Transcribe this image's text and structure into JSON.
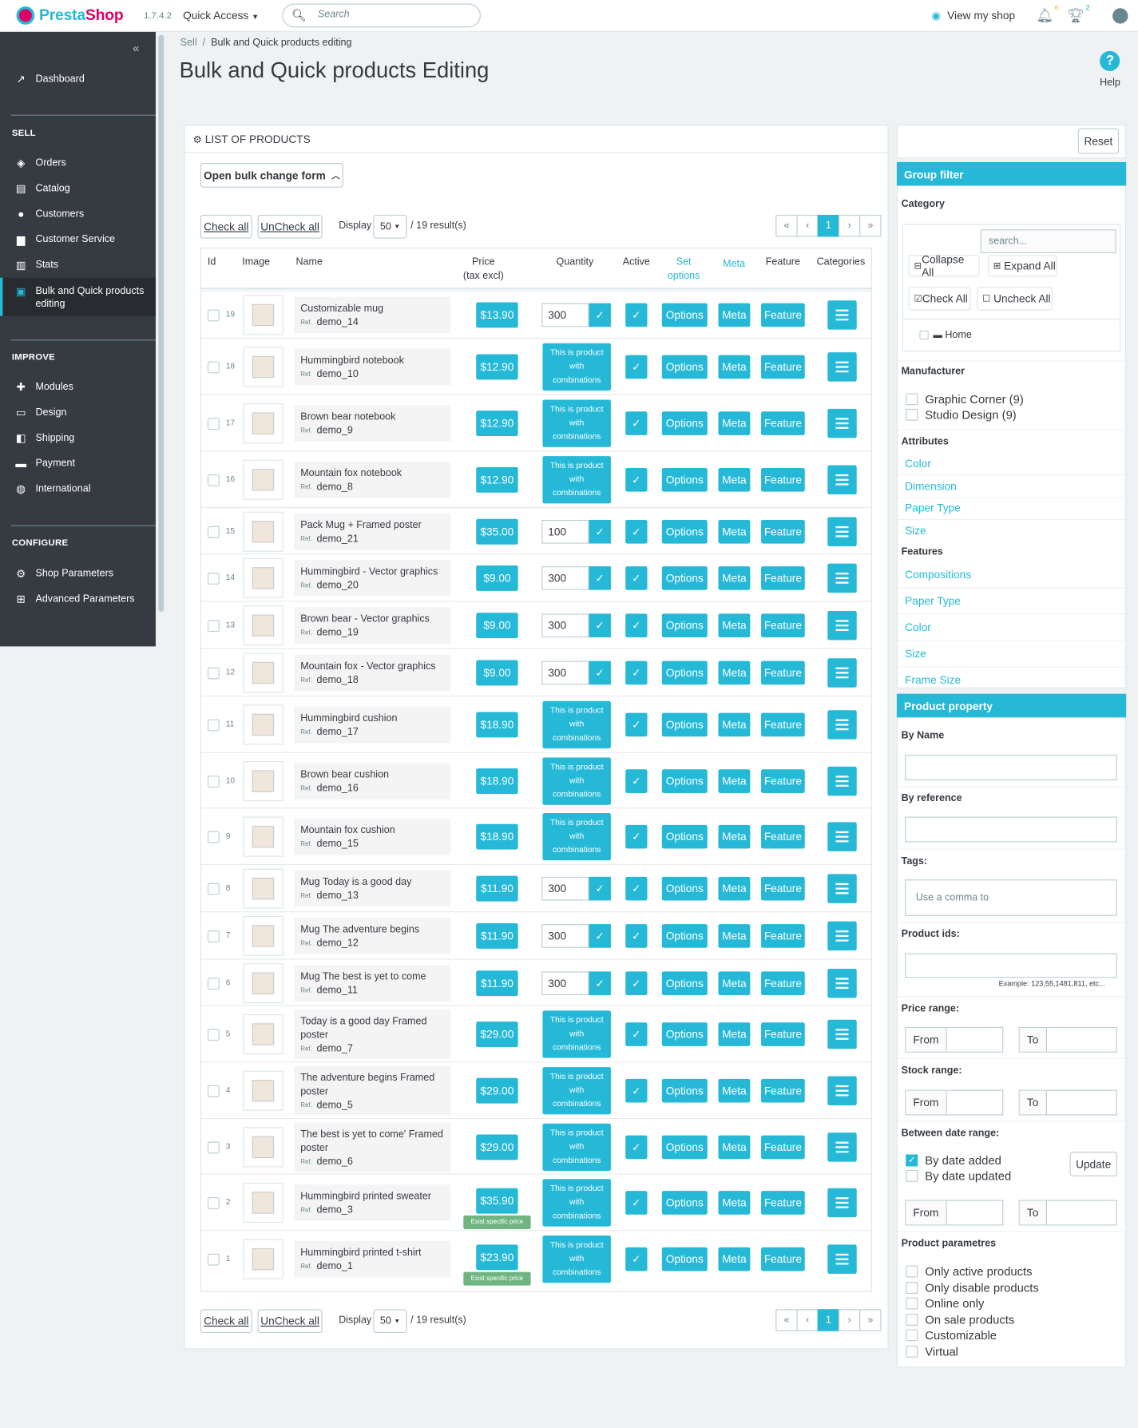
{
  "header": {
    "logo": "PrestaShop",
    "logo_presta": "Presta",
    "logo_shop": "Shop",
    "version": "1.7.4.2",
    "quick_access": "Quick Access",
    "search_placeholder": "Search",
    "view_shop": "View my shop",
    "notif_count": "6",
    "trophy_count": "2"
  },
  "sidebar": {
    "dashboard": "Dashboard",
    "sell": "SELL",
    "sell_items": [
      "Orders",
      "Catalog",
      "Customers",
      "Customer Service",
      "Stats"
    ],
    "active_item_1": "Bulk and Quick products",
    "active_item_2": "editing",
    "improve": "IMPROVE",
    "improve_items": [
      "Modules",
      "Design",
      "Shipping",
      "Payment",
      "International"
    ],
    "configure": "CONFIGURE",
    "configure_items": [
      "Shop Parameters",
      "Advanced Parameters"
    ]
  },
  "breadcrumb": {
    "sell": "Sell",
    "sep": "/",
    "current": "Bulk and Quick products editing"
  },
  "page_title": "Bulk and Quick products Editing",
  "help": "Help",
  "list": {
    "title": "List of products",
    "bulk_btn": "Open bulk change form",
    "check_all": "Check all",
    "uncheck_all": "UnCheck all",
    "display": "Display",
    "per_page": "50",
    "results": "/ 19 result(s)",
    "page": "1"
  },
  "columns": {
    "id": "Id",
    "image": "Image",
    "name": "Name",
    "price": "Price",
    "price_sub": "(tax excl)",
    "quantity": "Quantity",
    "active": "Active",
    "set": "Set",
    "options": "options",
    "meta": "Meta",
    "feature": "Feature",
    "categories": "Categories"
  },
  "labels": {
    "options": "Options",
    "meta": "Meta",
    "feature": "Feature",
    "comb": [
      "This is product",
      "with",
      "combinations"
    ],
    "ref": "Ref.",
    "exist_price": "Exist specific price"
  },
  "products": [
    {
      "id": "19",
      "name": [
        "Customizable mug"
      ],
      "ref": "demo_14",
      "price": "$13.90",
      "qty": "300"
    },
    {
      "id": "18",
      "name": [
        "Hummingbird notebook"
      ],
      "ref": "demo_10",
      "price": "$12.90",
      "qty": null
    },
    {
      "id": "17",
      "name": [
        "Brown bear notebook"
      ],
      "ref": "demo_9",
      "price": "$12.90",
      "qty": null
    },
    {
      "id": "16",
      "name": [
        "Mountain fox notebook"
      ],
      "ref": "demo_8",
      "price": "$12.90",
      "qty": null
    },
    {
      "id": "15",
      "name": [
        "Pack Mug + Framed poster"
      ],
      "ref": "demo_21",
      "price": "$35.00",
      "qty": "100"
    },
    {
      "id": "14",
      "name": [
        "Hummingbird - Vector graphics"
      ],
      "ref": "demo_20",
      "price": "$9.00",
      "qty": "300"
    },
    {
      "id": "13",
      "name": [
        "Brown bear - Vector graphics"
      ],
      "ref": "demo_19",
      "price": "$9.00",
      "qty": "300"
    },
    {
      "id": "12",
      "name": [
        "Mountain fox - Vector graphics"
      ],
      "ref": "demo_18",
      "price": "$9.00",
      "qty": "300"
    },
    {
      "id": "11",
      "name": [
        "Hummingbird cushion"
      ],
      "ref": "demo_17",
      "price": "$18.90",
      "qty": null
    },
    {
      "id": "10",
      "name": [
        "Brown bear cushion"
      ],
      "ref": "demo_16",
      "price": "$18.90",
      "qty": null
    },
    {
      "id": "9",
      "name": [
        "Mountain fox cushion"
      ],
      "ref": "demo_15",
      "price": "$18.90",
      "qty": null
    },
    {
      "id": "8",
      "name": [
        "Mug Today is a good day"
      ],
      "ref": "demo_13",
      "price": "$11.90",
      "qty": "300"
    },
    {
      "id": "7",
      "name": [
        "Mug The adventure begins"
      ],
      "ref": "demo_12",
      "price": "$11.90",
      "qty": "300"
    },
    {
      "id": "6",
      "name": [
        "Mug The best is yet to come"
      ],
      "ref": "demo_11",
      "price": "$11.90",
      "qty": "300"
    },
    {
      "id": "5",
      "name": [
        "Today is a good day Framed",
        "poster"
      ],
      "ref": "demo_7",
      "price": "$29.00",
      "qty": null
    },
    {
      "id": "4",
      "name": [
        "The adventure begins Framed",
        "poster"
      ],
      "ref": "demo_5",
      "price": "$29.00",
      "qty": null
    },
    {
      "id": "3",
      "name": [
        "The best is yet to come' Framed",
        "poster"
      ],
      "ref": "demo_6",
      "price": "$29.00",
      "qty": null
    },
    {
      "id": "2",
      "name": [
        "Hummingbird printed sweater"
      ],
      "ref": "demo_3",
      "price": "$35.90",
      "qty": null,
      "specific": true
    },
    {
      "id": "1",
      "name": [
        "Hummingbird printed t-shirt"
      ],
      "ref": "demo_1",
      "price": "$23.90",
      "qty": null,
      "specific": true
    }
  ],
  "filter": {
    "reset": "Reset",
    "group_filter": "Group filter",
    "category": "Category",
    "cat_search": "search...",
    "collapse_all": "Collapse All",
    "expand_all": "Expand All",
    "check_all": "Check All",
    "uncheck_all": "Uncheck All",
    "home": "Home",
    "manufacturer": "Manufacturer",
    "manufacturers": [
      "Graphic Corner (9)",
      "Studio Design (9)"
    ],
    "attributes": "Attributes",
    "attribute_items": [
      "Color",
      "Dimension",
      "Paper Type",
      "Size"
    ],
    "features": "Features",
    "feature_items": [
      "Compositions",
      "Paper Type",
      "Color",
      "Size",
      "Frame Size"
    ],
    "product_property": "Product property",
    "by_name": "By Name",
    "by_reference": "By reference",
    "tags": "Tags:",
    "tags_placeholder": "Use a comma to",
    "product_ids": "Product ids:",
    "ids_example": "Example: 123,55,1481,811, etc...",
    "price_range": "Price range:",
    "stock_range": "Stock range:",
    "from": "From",
    "to": "To",
    "date_range": "Between date range:",
    "by_date_added": "By date added",
    "by_date_updated": "By date updated",
    "update": "Update",
    "product_params": "Product parametres",
    "params": [
      "Only active products",
      "Only disable products",
      "Online only",
      "On sale products",
      "Customizable",
      "Virtual"
    ]
  }
}
